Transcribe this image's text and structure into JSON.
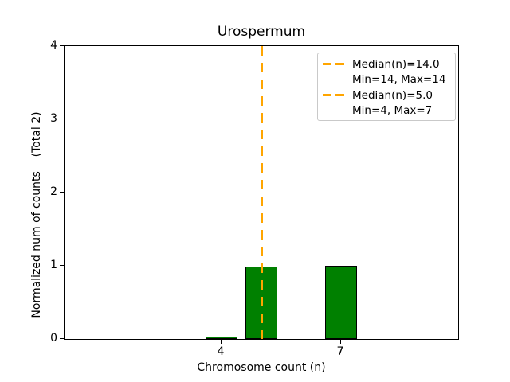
{
  "title": "Urospermum",
  "axes": {
    "xlabel": "Chromosome count (n)",
    "ylabel": "Normalized num of counts    (Total 2)"
  },
  "legend": {
    "rows": [
      {
        "label": "Median(n)=14.0",
        "has_sample": true
      },
      {
        "label": "Min=14, Max=14",
        "has_sample": false
      },
      {
        "label": "Median(n)=5.0",
        "has_sample": true
      },
      {
        "label": "Min=4, Max=7",
        "has_sample": false
      }
    ]
  },
  "colors": {
    "bar_fill": "#008000",
    "bar_edge": "#000000",
    "median_line": "#FFA500",
    "axis": "#000000",
    "background": "#ffffff"
  },
  "chart_data": {
    "type": "bar",
    "title": "Urospermum",
    "xlabel": "Chromosome count (n)",
    "ylabel": "Normalized num of counts (Total 2)",
    "total_counts": 2,
    "bars": [
      {
        "x": 4,
        "value": 0.02
      },
      {
        "x": 5,
        "value": 0.99
      },
      {
        "x": 7,
        "value": 1.0
      }
    ],
    "bar_width": 0.8,
    "bar_color": "#008000",
    "bar_edge_color": "#000000",
    "median_lines": [
      {
        "x": 14,
        "label": "Median(n)=14.0",
        "note": "Min=14, Max=14",
        "color": "#FFA500",
        "style": "dashed"
      },
      {
        "x": 5,
        "label": "Median(n)=5.0",
        "note": "Min=4, Max=7",
        "color": "#FFA500",
        "style": "dashed"
      }
    ],
    "xlim": [
      0.04,
      9.96
    ],
    "ylim": [
      0,
      4
    ],
    "x_ticks": [
      4,
      7
    ],
    "y_ticks": [
      0,
      1,
      2,
      3,
      4
    ],
    "grid": false,
    "legend_position": "upper right"
  }
}
